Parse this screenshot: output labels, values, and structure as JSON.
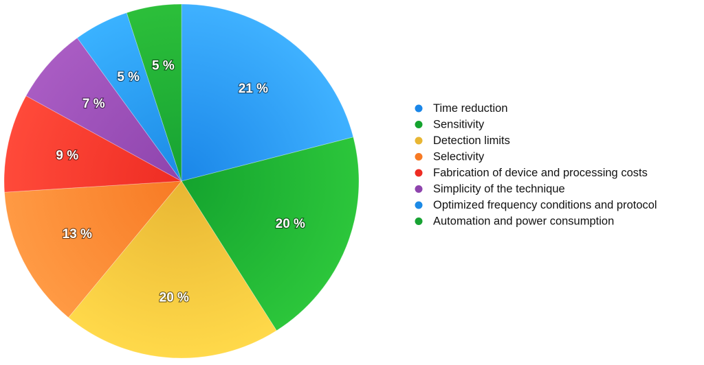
{
  "chart_data": {
    "type": "pie",
    "title": "",
    "legend_position": "right",
    "slices": [
      {
        "label": "Time reduction",
        "value": 21,
        "display": "21 %",
        "color": "#1a86e8",
        "color_light": "#3fb1ff"
      },
      {
        "label": "Sensitivity",
        "value": 20,
        "display": "20 %",
        "color": "#14a32e",
        "color_light": "#2cc63b"
      },
      {
        "label": "Detection limits",
        "value": 20,
        "display": "20 %",
        "color": "#e8b633",
        "color_light": "#ffd94a"
      },
      {
        "label": "Selectivity",
        "value": 13,
        "display": "13 %",
        "color": "#f77a24",
        "color_light": "#ff9a44"
      },
      {
        "label": "Fabrication of device and processing costs",
        "value": 9,
        "display": "9 %",
        "color": "#ee2c23",
        "color_light": "#ff4a3a"
      },
      {
        "label": "Simplicity of the technique",
        "value": 7,
        "display": "7 %",
        "color": "#8e44ad",
        "color_light": "#a95cc3"
      },
      {
        "label": "Optimized frequency conditions and protocol",
        "value": 5,
        "display": "5 %",
        "color": "#1c8ae6",
        "color_light": "#3ab2ff"
      },
      {
        "label": "Automation and power consumption",
        "value": 5,
        "display": "5 %",
        "color": "#17a233",
        "color_light": "#2cbf3a"
      }
    ]
  }
}
